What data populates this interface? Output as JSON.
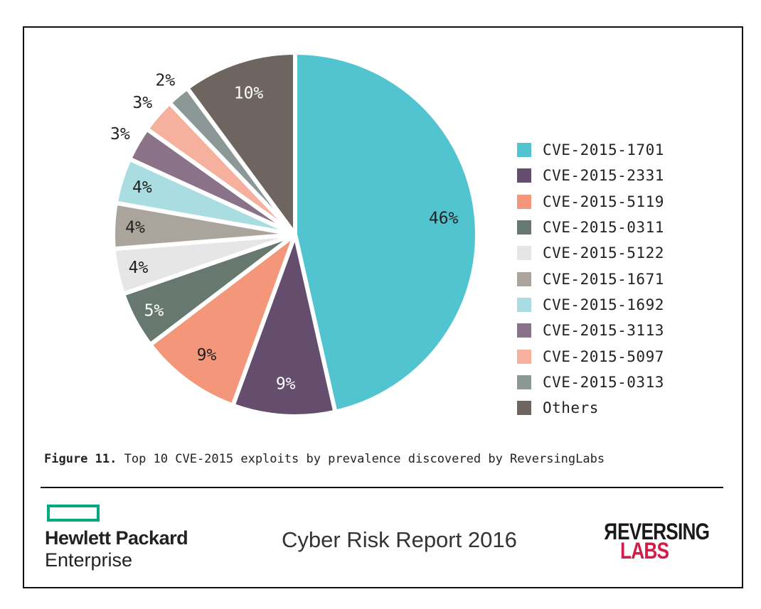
{
  "chart_data": {
    "type": "pie",
    "title": "",
    "start_angle": "12 o'clock",
    "direction": "clockwise",
    "slices": [
      {
        "label": "CVE-2015-1701",
        "value": 46,
        "display": "46%",
        "color": "#52c4cf"
      },
      {
        "label": "CVE-2015-2331",
        "value": 9,
        "display": "9%",
        "color": "#654d6d"
      },
      {
        "label": "CVE-2015-5119",
        "value": 9,
        "display": "9%",
        "color": "#f4967a"
      },
      {
        "label": "CVE-2015-0311",
        "value": 5,
        "display": "5%",
        "color": "#66786f"
      },
      {
        "label": "CVE-2015-5122",
        "value": 4,
        "display": "4%",
        "color": "#e6e6e6"
      },
      {
        "label": "CVE-2015-1671",
        "value": 4,
        "display": "4%",
        "color": "#aaa49d"
      },
      {
        "label": "CVE-2015-1692",
        "value": 4,
        "display": "4%",
        "color": "#a9dde2"
      },
      {
        "label": "CVE-2015-3113",
        "value": 3,
        "display": "3%",
        "color": "#8a7289"
      },
      {
        "label": "CVE-2015-5097",
        "value": 3,
        "display": "3%",
        "color": "#f5b19d"
      },
      {
        "label": "CVE-2015-0313",
        "value": 2,
        "display": "2%",
        "color": "#8b9896"
      },
      {
        "label": "Others",
        "value": 10,
        "display": "10%",
        "color": "#6e6560"
      }
    ],
    "legend_position": "right"
  },
  "caption": {
    "figure": "Figure 11.",
    "text": " Top 10 CVE-2015 exploits by prevalence discovered by ReversingLabs"
  },
  "footer": {
    "hpe_line1": "Hewlett Packard",
    "hpe_line2": "Enterprise",
    "report": "Cyber Risk Report 2016",
    "logo_line1": "REVERSING",
    "logo_line2": "LABS",
    "hpe_color": "#01a982",
    "labs_color": "#d31d48"
  }
}
